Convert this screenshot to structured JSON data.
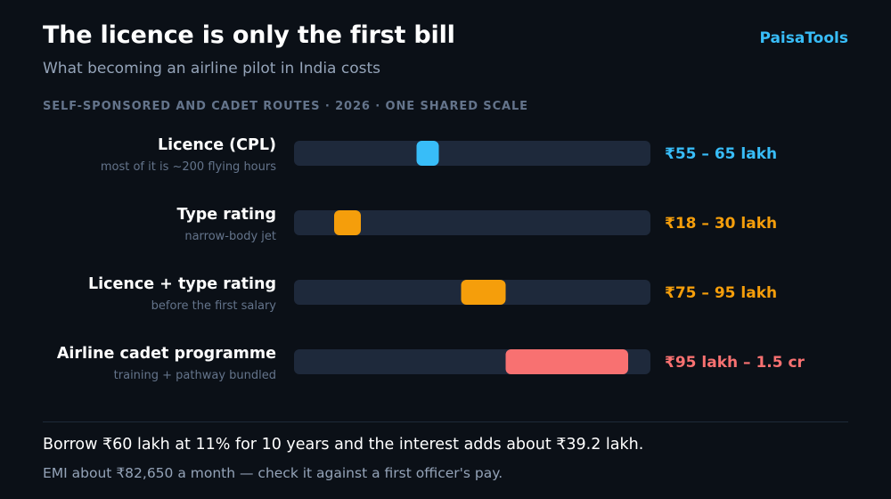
{
  "header": {
    "title": "The licence is only the first bill",
    "subtitle": "What becoming an airline pilot in India costs",
    "brand": "PaisaTools",
    "section_label": "SELF-SPONSORED AND CADET ROUTES · 2026 · ONE SHARED SCALE"
  },
  "chart_data": {
    "type": "bar",
    "orientation": "horizontal-range",
    "unit": "lakh",
    "xlim": [
      0,
      160
    ],
    "grid": false,
    "legend": "none",
    "rows": [
      {
        "label": "Licence (CPL)",
        "note": "most of it is ~200 flying hours",
        "low": 55,
        "high": 65,
        "value_label": "₹55 – 65 lakh",
        "color": "#38bdf8"
      },
      {
        "label": "Type rating",
        "note": "narrow-body jet",
        "low": 18,
        "high": 30,
        "value_label": "₹18 – 30 lakh",
        "color": "#f59e0b"
      },
      {
        "label": "Licence + type rating",
        "note": "before the first salary",
        "low": 75,
        "high": 95,
        "value_label": "₹75 – 95 lakh",
        "color": "#f59e0b"
      },
      {
        "label": "Airline cadet programme",
        "note": "training + pathway bundled",
        "low": 95,
        "high": 150,
        "value_label": "₹95 lakh – 1.5 cr",
        "color": "#f87171"
      }
    ]
  },
  "colors": {
    "background": "#0b1017",
    "track": "#1e293b",
    "accent": "#38bdf8"
  },
  "footer": {
    "main": "Borrow ₹60 lakh at 11% for 10 years and the interest adds about ₹39.2 lakh.",
    "sub": "EMI about ₹82,650 a month — check it against a first officer's pay."
  }
}
